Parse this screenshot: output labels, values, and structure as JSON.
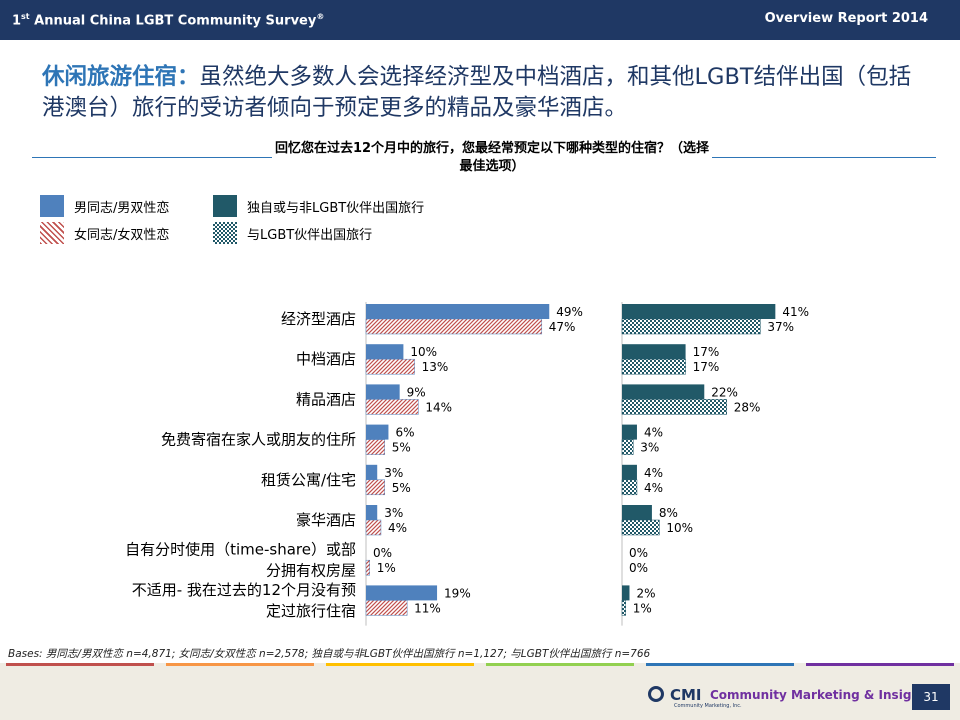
{
  "header": {
    "survey_ordinal": "1",
    "survey_sup": "st",
    "survey_rest": " Annual China LGBT Community Survey",
    "survey_mark": "®",
    "report": "Overview Report 2014"
  },
  "headline": {
    "lead": "休闲旅游住宿：",
    "text": "虽然绝大多数人会选择经济型及中档酒店，和其他LGBT结伴出国（包括港澳台）旅行的受访者倾向于预定更多的精品及豪华酒店。"
  },
  "question": "回忆您在过去12个月中的旅行，您最经常预定以下哪种类型的住宿？（选择最佳选项）",
  "legend": {
    "gay_bi_men": "男同志/男双性恋",
    "lesbian_bi_women": "女同志/女双性恋",
    "solo_non_lgbt": "独自或与非LGBT伙伴出国旅行",
    "with_lgbt": "与LGBT伙伴出国旅行"
  },
  "chart_data": {
    "type": "bar",
    "orientation": "horizontal",
    "categories": [
      [
        "经济型酒店"
      ],
      [
        "中档酒店"
      ],
      [
        "精品酒店"
      ],
      [
        "免费寄宿在家人或朋友的住所"
      ],
      [
        "租赁公寓/住宅"
      ],
      [
        "豪华酒店"
      ],
      [
        "自有分时使用（time-share）或部",
        "分拥有权房屋"
      ],
      [
        "不适用- 我在过去的12个月没有预",
        "定过旅行住宿"
      ]
    ],
    "panels": [
      {
        "series": [
          {
            "name": "男同志/男双性恋",
            "color": "#4f81bd",
            "values": [
              49,
              10,
              9,
              6,
              3,
              3,
              0,
              19
            ]
          },
          {
            "name": "女同志/女双性恋",
            "color": "#c0504d",
            "values": [
              47,
              13,
              14,
              5,
              5,
              4,
              1,
              11
            ]
          }
        ]
      },
      {
        "series": [
          {
            "name": "独自或与非LGBT伙伴出国旅行",
            "color": "#215968",
            "values": [
              41,
              17,
              22,
              4,
              4,
              8,
              0,
              2
            ]
          },
          {
            "name": "与LGBT伙伴出国旅行",
            "color": "#215968",
            "values": [
              37,
              17,
              28,
              3,
              4,
              10,
              0,
              1
            ]
          }
        ]
      }
    ],
    "value_suffix": "%"
  },
  "bases": "Bases: 男同志/男双性恋 n=4,871; 女同志/女双性恋 n=2,578; 独自或与非LGBT伙伴出国旅行 n=1,127; 与LGBT伙伴出国旅行 n=766",
  "footer": {
    "logo_short": "CMI",
    "logo_full": "Community Marketing & Insights",
    "logo_tiny": "Community Marketing, Inc.",
    "page_number": "31",
    "stripe_colors": [
      "#c0504d",
      "#f79646",
      "#ffc000",
      "#92d050",
      "#2e75b6",
      "#7030a0"
    ]
  }
}
